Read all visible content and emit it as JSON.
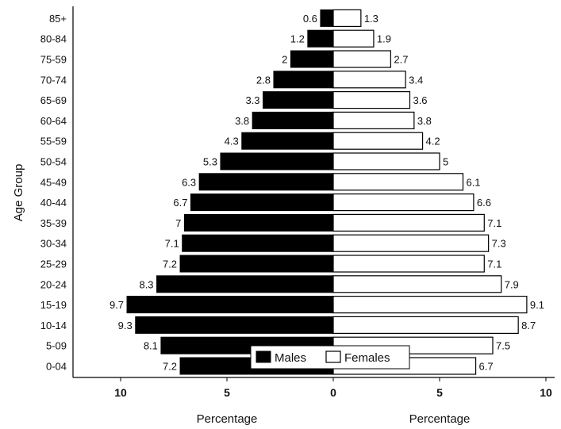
{
  "chart_data": {
    "type": "bar",
    "orientation": "horizontal",
    "subtype": "population-pyramid",
    "categories": [
      "85+",
      "80-84",
      "75-59",
      "70-74",
      "65-69",
      "60-64",
      "55-59",
      "50-54",
      "45-49",
      "40-44",
      "35-39",
      "30-34",
      "25-29",
      "20-24",
      "15-19",
      "10-14",
      "5-09",
      "0-04"
    ],
    "series": [
      {
        "name": "Males",
        "color": "#000000",
        "side": "left",
        "values": [
          0.6,
          1.2,
          2,
          2.8,
          3.3,
          3.8,
          4.3,
          5.3,
          6.3,
          6.7,
          7,
          7.1,
          7.2,
          8.3,
          9.7,
          9.3,
          8.1,
          7.2
        ]
      },
      {
        "name": "Females",
        "color": "#ffffff",
        "side": "right",
        "values": [
          1.3,
          1.9,
          2.7,
          3.4,
          3.6,
          3.8,
          4.2,
          5,
          6.1,
          6.6,
          7.1,
          7.3,
          7.1,
          7.9,
          9.1,
          8.7,
          7.5,
          6.7
        ]
      }
    ],
    "ylabel": "Age Group",
    "xlabel_left": "Percentage",
    "xlabel_right": "Percentage",
    "x_ticks": [
      "10",
      "5",
      "0",
      "5",
      "10"
    ],
    "xlim": [
      0,
      10
    ],
    "legend_position": "bottom-center",
    "grid": false
  }
}
